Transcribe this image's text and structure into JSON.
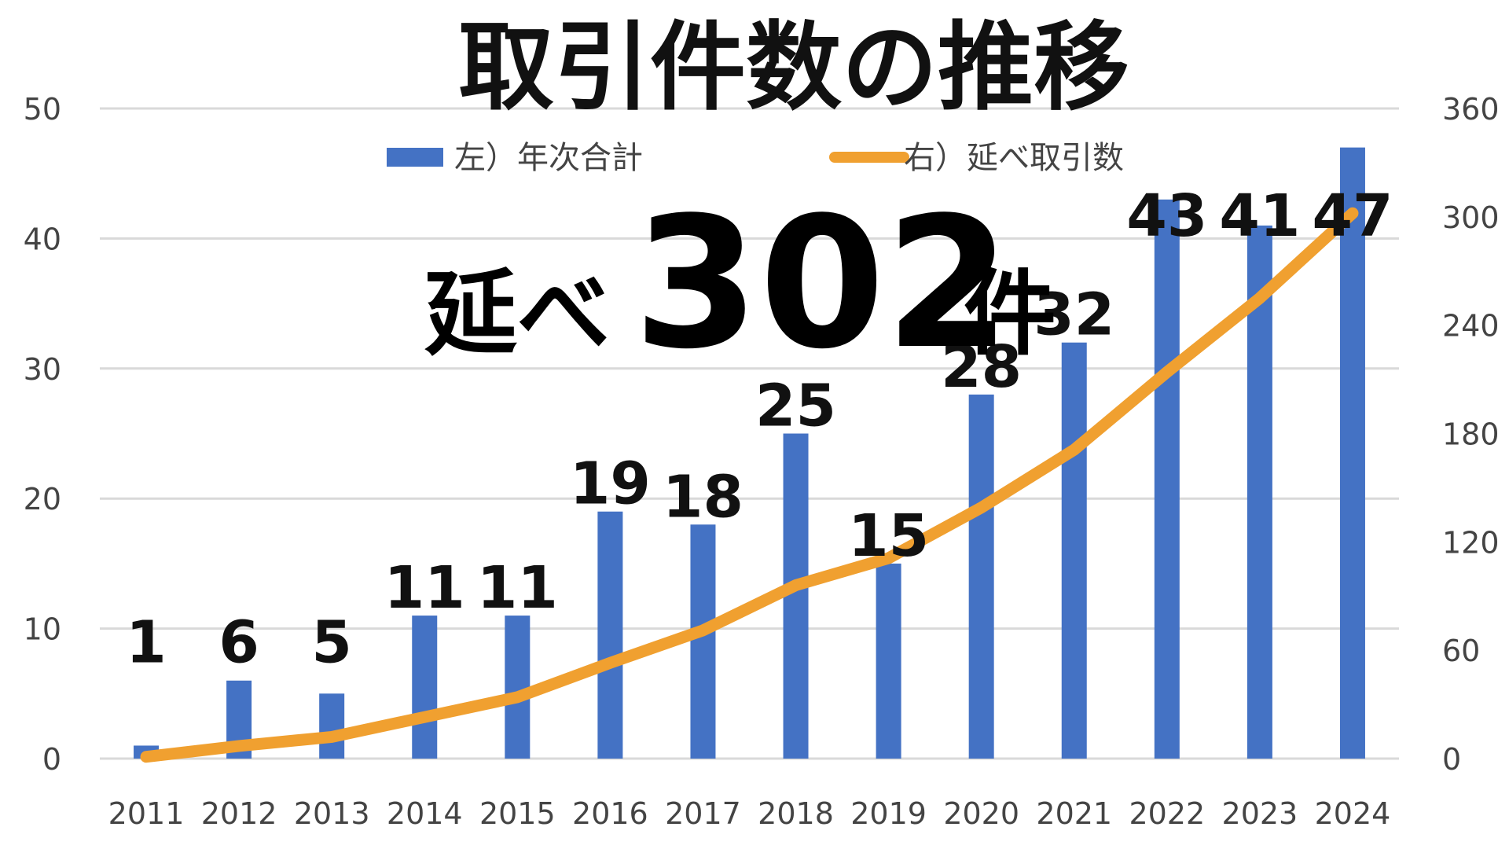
{
  "chart_data": {
    "type": "bar",
    "title": "取引件数の推移",
    "annotation": {
      "prefix": "延べ",
      "number": "302",
      "suffix": "件"
    },
    "categories": [
      "2011",
      "2012",
      "2013",
      "2014",
      "2015",
      "2016",
      "2017",
      "2018",
      "2019",
      "2020",
      "2021",
      "2022",
      "2023",
      "2024"
    ],
    "series": [
      {
        "name": "左）年次合計",
        "type": "bar",
        "axis": "left",
        "color": "#4472C4",
        "values": [
          1,
          6,
          5,
          11,
          11,
          19,
          18,
          25,
          15,
          28,
          32,
          43,
          41,
          47
        ],
        "labels": [
          "1",
          "6",
          "5",
          "11",
          "11",
          "19",
          "18",
          "25",
          "15",
          "28",
          "32",
          "43",
          "41",
          "47"
        ]
      },
      {
        "name": "右）延べ取引数",
        "type": "line",
        "axis": "right",
        "color": "#F0A030",
        "values": [
          1,
          7,
          12,
          23,
          34,
          53,
          71,
          96,
          111,
          139,
          171,
          214,
          255,
          302
        ]
      }
    ],
    "y_left": {
      "min": 0,
      "max": 50,
      "ticks": [
        "0",
        "10",
        "20",
        "30",
        "40",
        "50"
      ]
    },
    "y_right": {
      "min": 0,
      "max": 360,
      "ticks": [
        "0",
        "60",
        "120",
        "180",
        "240",
        "300",
        "360"
      ]
    },
    "grid": true,
    "legend_position": "top-center"
  }
}
